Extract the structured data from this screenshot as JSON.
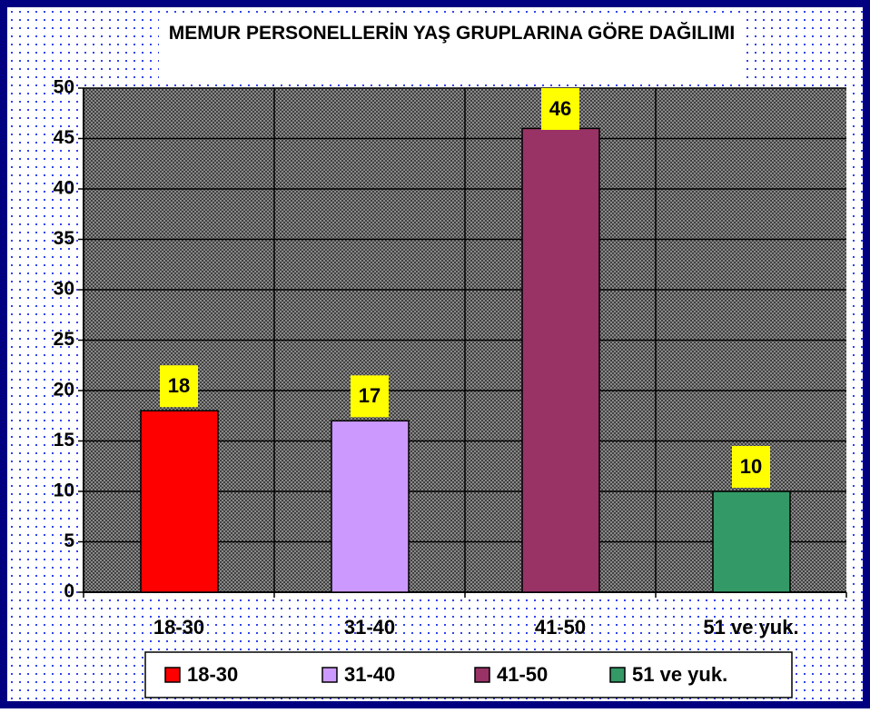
{
  "chart_data": {
    "type": "bar",
    "title": "MEMUR PERSONELLERİN YAŞ GRUPLARINA GÖRE DAĞILIMI",
    "categories": [
      "18-30",
      "31-40",
      "41-50",
      "51 ve yuk."
    ],
    "values": [
      18,
      17,
      46,
      10
    ],
    "colors": [
      "#ff0000",
      "#cc99ff",
      "#993366",
      "#339966"
    ],
    "ylim": [
      0,
      50
    ],
    "yticks": [
      0,
      5,
      10,
      15,
      20,
      25,
      30,
      35,
      40,
      45,
      50
    ],
    "grid": true,
    "legend": "bottom"
  }
}
